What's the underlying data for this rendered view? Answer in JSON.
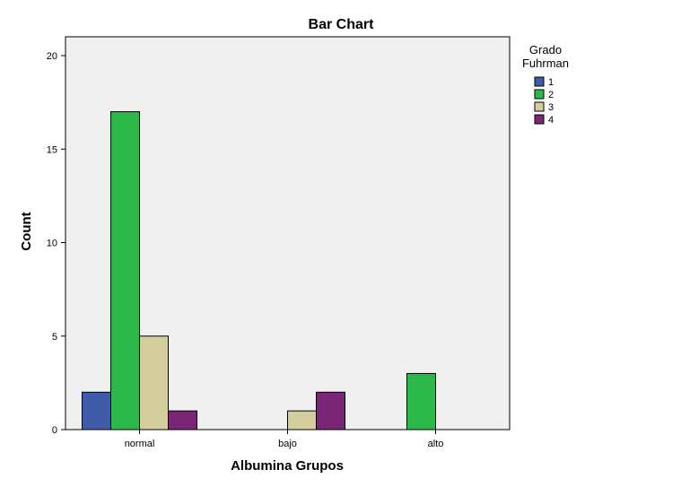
{
  "chart_data": {
    "type": "bar",
    "title": "Bar Chart",
    "xlabel": "Albumina Grupos",
    "ylabel": "Count",
    "categories": [
      "normal",
      "bajo",
      "alto"
    ],
    "ylim": [
      0,
      20
    ],
    "yticks": [
      "0",
      "5",
      "10",
      "15",
      "20"
    ],
    "grid": false,
    "legend": {
      "title_lines": [
        "Grado",
        "Fuhrman"
      ],
      "placement": "right-top"
    },
    "series": [
      {
        "name": "1",
        "color": "#3f5ba9",
        "values": [
          2,
          0,
          0
        ]
      },
      {
        "name": "2",
        "color": "#2db84a",
        "values": [
          17,
          0,
          3
        ]
      },
      {
        "name": "3",
        "color": "#d3ce9b",
        "values": [
          5,
          1,
          0
        ]
      },
      {
        "name": "4",
        "color": "#7b2577",
        "values": [
          1,
          2,
          0
        ]
      }
    ]
  }
}
